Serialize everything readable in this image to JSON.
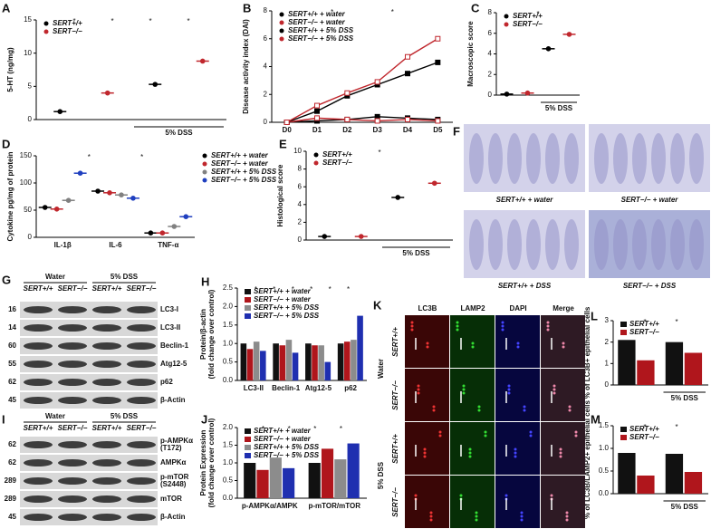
{
  "chart_data": [
    {
      "panel": "A",
      "type": "dot",
      "ylabel": "5-HT (ng/mg)",
      "categories": [
        null,
        null,
        null,
        null
      ],
      "series": [
        {
          "name": "SERT+/+",
          "color": "#000000",
          "values": [
            1.2,
            null,
            5.3,
            null
          ]
        },
        {
          "name": "SERT−/−",
          "color": "#c0272d",
          "values": [
            null,
            4.0,
            null,
            8.8
          ]
        }
      ],
      "ylim": [
        0,
        15
      ],
      "yticks": [
        0,
        5,
        10,
        15
      ],
      "legend": "top-left",
      "group_label": "5% DSS",
      "annotations": [
        "*",
        "*",
        "*",
        "*"
      ]
    },
    {
      "panel": "B",
      "type": "line",
      "ylabel": "Disease activity index (DAI)",
      "categories": [
        "D0",
        "D1",
        "D2",
        "D3",
        "D4",
        "D5"
      ],
      "series": [
        {
          "name": "SERT+/+ + water",
          "color": "#000000",
          "values": [
            0,
            0.1,
            0.2,
            0.4,
            0.3,
            0.2
          ]
        },
        {
          "name": "SERT−/− + water",
          "color": "#c0272d",
          "values": [
            0,
            0.3,
            0.2,
            0.1,
            0.2,
            0.1
          ]
        },
        {
          "name": "SERT+/+ + 5% DSS",
          "color": "#000000",
          "values": [
            0,
            0.8,
            1.9,
            2.7,
            3.5,
            4.3
          ]
        },
        {
          "name": "SERT−/− + 5% DSS",
          "color": "#c0272d",
          "values": [
            0,
            1.2,
            2.1,
            2.9,
            4.7,
            6.0
          ]
        }
      ],
      "ylim": [
        0,
        8
      ],
      "yticks": [
        0,
        2,
        4,
        6,
        8
      ],
      "legend": "top-left",
      "annotations": [
        "*",
        "*"
      ]
    },
    {
      "panel": "C",
      "type": "dot",
      "ylabel": "Macroscopic score",
      "categories": [
        null,
        null,
        null,
        null
      ],
      "series": [
        {
          "name": "SERT+/+",
          "color": "#000000",
          "values": [
            0.1,
            null,
            4.5,
            null
          ]
        },
        {
          "name": "SERT−/−",
          "color": "#c0272d",
          "values": [
            null,
            0.2,
            null,
            5.9
          ]
        }
      ],
      "ylim": [
        0,
        8
      ],
      "yticks": [
        0,
        2,
        4,
        6,
        8
      ],
      "legend": "top-left",
      "group_label": "5% DSS",
      "annotations": [
        "*"
      ]
    },
    {
      "panel": "D",
      "type": "dot",
      "ylabel": "Cytokine pg/mg of protein",
      "categories": [
        "IL-1β",
        "IL-6",
        "TNF-α"
      ],
      "series": [
        {
          "name": "SERT+/+ + water",
          "color": "#000000",
          "values": [
            55,
            85,
            8
          ]
        },
        {
          "name": "SERT−/− + water",
          "color": "#c0272d",
          "values": [
            52,
            82,
            8
          ]
        },
        {
          "name": "SERT+/+ + 5% DSS",
          "color": "#808080",
          "values": [
            68,
            78,
            20
          ]
        },
        {
          "name": "SERT−/− + 5% DSS",
          "color": "#1f3fbf",
          "values": [
            118,
            72,
            38
          ]
        }
      ],
      "ylim": [
        0,
        150
      ],
      "yticks": [
        0,
        50,
        100,
        150
      ],
      "legend": "right",
      "annotations": [
        "*",
        "*"
      ]
    },
    {
      "panel": "E",
      "type": "dot",
      "ylabel": "Histological score",
      "categories": [
        null,
        null,
        null,
        null
      ],
      "series": [
        {
          "name": "SERT+/+",
          "color": "#000000",
          "values": [
            0.4,
            null,
            4.8,
            null
          ]
        },
        {
          "name": "SERT−/−",
          "color": "#c0272d",
          "values": [
            null,
            0.4,
            null,
            6.4
          ]
        }
      ],
      "ylim": [
        0,
        10
      ],
      "yticks": [
        0,
        2,
        4,
        6,
        8,
        10
      ],
      "legend": "top-left",
      "group_label": "5% DSS",
      "annotations": [
        "*"
      ]
    },
    {
      "panel": "H",
      "type": "bar",
      "ylabel": [
        "Protein/β-actin",
        "(fold change over control)"
      ],
      "categories": [
        "LC3-II",
        "Beclin-1",
        "Atg12-5",
        "p62"
      ],
      "series": [
        {
          "name": "SERT+/+ + water",
          "color": "#111111",
          "values": [
            1,
            1,
            1,
            1
          ]
        },
        {
          "name": "SERT−/− + water",
          "color": "#b0161c",
          "values": [
            0.85,
            0.95,
            0.95,
            1.05
          ]
        },
        {
          "name": "SERT+/+ + 5% DSS",
          "color": "#8c8c8c",
          "values": [
            1.05,
            1.1,
            0.95,
            1.1
          ]
        },
        {
          "name": "SERT−/− + 5% DSS",
          "color": "#1f2fb0",
          "values": [
            0.8,
            0.75,
            0.5,
            1.75
          ]
        }
      ],
      "ylim": [
        0,
        2.5
      ],
      "yticks": [
        {
          "value": 0,
          "label": "0.0"
        },
        {
          "value": 0.5,
          "label": "0.5"
        },
        {
          "value": 1,
          "label": "1.0"
        },
        {
          "value": 1.5,
          "label": "1.5"
        },
        {
          "value": 2,
          "label": "2.0"
        },
        {
          "value": 2.5,
          "label": "2.5"
        }
      ],
      "legend": "top-left",
      "annotations": [
        "*",
        "*",
        "*",
        "*",
        "*",
        "*"
      ]
    },
    {
      "panel": "J",
      "type": "bar",
      "ylabel": [
        "Protein Expression",
        "(fold change over control)"
      ],
      "categories": [
        "p-AMPKα/AMPK",
        "p-mTOR/mTOR"
      ],
      "series": [
        {
          "name": "SERT+/+ + water",
          "color": "#111111",
          "values": [
            1,
            1
          ]
        },
        {
          "name": "SERT−/− + water",
          "color": "#b0161c",
          "values": [
            0.8,
            1.4
          ]
        },
        {
          "name": "SERT+/+ + 5% DSS",
          "color": "#8c8c8c",
          "values": [
            1.15,
            1.1
          ]
        },
        {
          "name": "SERT−/− + 5% DSS",
          "color": "#1f2fb0",
          "values": [
            0.85,
            1.55
          ]
        }
      ],
      "ylim": [
        0,
        2
      ],
      "yticks": [
        {
          "value": 0,
          "label": "0.0"
        },
        {
          "value": 0.5,
          "label": "0.5"
        },
        {
          "value": 1,
          "label": "1.0"
        },
        {
          "value": 1.5,
          "label": "1.5"
        },
        {
          "value": 2,
          "label": "2.0"
        }
      ],
      "legend": "top-left",
      "annotations": [
        "*",
        "*",
        "*",
        "*"
      ]
    },
    {
      "panel": "L",
      "type": "bar",
      "ylabel": "% of LC3B+ epithelial cells",
      "categories": [
        null,
        null
      ],
      "series": [
        {
          "name": "SERT+/+",
          "color": "#111111",
          "values": [
            2.1,
            2.0
          ]
        },
        {
          "name": "SERT−/−",
          "color": "#b0161c",
          "values": [
            1.15,
            1.5
          ]
        }
      ],
      "ylim": [
        0,
        3
      ],
      "yticks": [
        0,
        1,
        2,
        3
      ],
      "legend": "top-left",
      "group_label": "5% DSS",
      "annotations": [
        "*",
        "*"
      ]
    },
    {
      "panel": "M",
      "type": "bar",
      "ylabel": "% of LC3B/LAMP2+ epithelial cells",
      "categories": [
        null,
        null
      ],
      "series": [
        {
          "name": "SERT+/+",
          "color": "#111111",
          "values": [
            0.9,
            0.88
          ]
        },
        {
          "name": "SERT−/−",
          "color": "#b0161c",
          "values": [
            0.4,
            0.48
          ]
        }
      ],
      "ylim": [
        0,
        1.5
      ],
      "yticks": [
        {
          "value": 0,
          "label": "0.0"
        },
        {
          "value": 0.5,
          "label": "0.5"
        },
        {
          "value": 1,
          "label": "1.0"
        },
        {
          "value": 1.5,
          "label": "1.5"
        }
      ],
      "legend": "top-left",
      "group_label": "5% DSS",
      "annotations": [
        "*",
        "*"
      ]
    }
  ],
  "blots": [
    {
      "panel": "G",
      "groups": [
        "Water",
        "5% DSS"
      ],
      "lanes": [
        "SERT+/+",
        "SERT−/−",
        "SERT+/+",
        "SERT−/−"
      ],
      "rows": [
        {
          "label": [
            "LC3-I"
          ],
          "mw": 16
        },
        {
          "label": [
            "LC3-II"
          ],
          "mw": 14
        },
        {
          "label": [
            "Beclin-1"
          ],
          "mw": 60
        },
        {
          "label": [
            "Atg12-5"
          ],
          "mw": 55
        },
        {
          "label": [
            "p62"
          ],
          "mw": 62
        },
        {
          "label": [
            "β-Actin"
          ],
          "mw": 45
        }
      ]
    },
    {
      "panel": "I",
      "groups": [
        "Water",
        "5% DSS"
      ],
      "lanes": [
        "SERT+/+",
        "SERT−/−",
        "SERT+/+",
        "SERT−/−"
      ],
      "rows": [
        {
          "label": [
            "p-AMPKα",
            "(T172)"
          ],
          "mw": 62
        },
        {
          "label": [
            "AMPKα"
          ],
          "mw": 62
        },
        {
          "label": [
            "p-mTOR",
            "(S2448)"
          ],
          "mw": 289
        },
        {
          "label": [
            "mTOR"
          ],
          "mw": 289
        },
        {
          "label": [
            "β-Actin"
          ],
          "mw": 45
        }
      ]
    }
  ],
  "histology": {
    "panel": "F",
    "captions": [
      "SERT+/+ + water",
      "SERT−/− + water",
      "SERT+/+ + DSS",
      "SERT−/− + DSS"
    ]
  },
  "immunofluorescence": {
    "panel": "K",
    "columns": [
      "LC3B",
      "LAMP2",
      "DAPI",
      "Merge"
    ],
    "rows": [
      "SERT+/+",
      "SERT−/−",
      "SERT+/+",
      "SERT−/−"
    ],
    "groups": [
      "Water",
      "5% DSS"
    ]
  }
}
